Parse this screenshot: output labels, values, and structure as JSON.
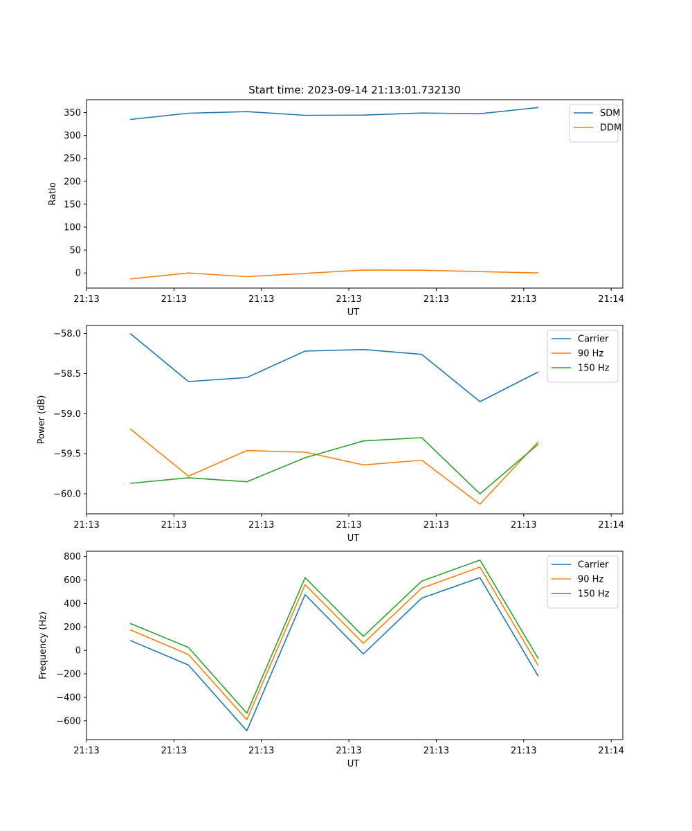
{
  "chart_data": [
    {
      "type": "line",
      "title": "Start time: 2023-09-14 21:13:01.732130",
      "xlabel": "UT",
      "ylabel": "Ratio",
      "ylim": [
        -33,
        378
      ],
      "yticks": [
        0,
        50,
        100,
        150,
        200,
        250,
        300,
        350
      ],
      "xlim": [
        -0.5,
        8.7
      ],
      "xticks": [
        -0.5,
        1.0,
        2.5,
        4.0,
        5.5,
        7.0,
        8.5
      ],
      "xticklabels": [
        "21:13",
        "21:13",
        "21:13",
        "21:13",
        "21:13",
        "21:13",
        "21:14"
      ],
      "x": [
        0.25,
        1.25,
        2.25,
        3.25,
        4.25,
        5.25,
        6.25,
        7.25
      ],
      "legend_position": "top-right",
      "series": [
        {
          "name": "SDM",
          "color": "#1f77b4",
          "values": [
            335,
            348.5,
            352,
            344,
            344.5,
            349,
            347.5,
            361
          ]
        },
        {
          "name": "DDM",
          "color": "#ff7f0e",
          "values": [
            -13,
            0,
            -8,
            -1,
            6.5,
            6,
            3,
            0
          ]
        }
      ]
    },
    {
      "type": "line",
      "title": "",
      "xlabel": "UT",
      "ylabel": "Power (dB)",
      "ylim": [
        -60.25,
        -57.9
      ],
      "yticks": [
        -60.0,
        -59.5,
        -59.0,
        -58.5,
        -58.0
      ],
      "yticklabels": [
        "−60.0",
        "−59.5",
        "−59.0",
        "−58.5",
        "−58.0"
      ],
      "xlim": [
        -0.5,
        8.7
      ],
      "xticks": [
        -0.5,
        1.0,
        2.5,
        4.0,
        5.5,
        7.0,
        8.5
      ],
      "xticklabels": [
        "21:13",
        "21:13",
        "21:13",
        "21:13",
        "21:13",
        "21:13",
        "21:14"
      ],
      "x": [
        0.25,
        1.25,
        2.25,
        3.25,
        4.25,
        5.25,
        6.25,
        7.25
      ],
      "legend_position": "top-right",
      "series": [
        {
          "name": "Carrier",
          "color": "#1f77b4",
          "values": [
            -58.0,
            -58.6,
            -58.55,
            -58.22,
            -58.2,
            -58.26,
            -58.85,
            -58.48
          ]
        },
        {
          "name": "90 Hz",
          "color": "#ff7f0e",
          "values": [
            -59.19,
            -59.78,
            -59.46,
            -59.48,
            -59.64,
            -59.58,
            -60.13,
            -59.35
          ]
        },
        {
          "name": "150 Hz",
          "color": "#2ca02c",
          "values": [
            -59.87,
            -59.8,
            -59.85,
            -59.55,
            -59.34,
            -59.3,
            -60.0,
            -59.38
          ]
        }
      ]
    },
    {
      "type": "line",
      "title": "",
      "xlabel": "UT",
      "ylabel": "Frequency (Hz)",
      "ylim": [
        -760,
        845
      ],
      "yticks": [
        -600,
        -400,
        -200,
        0,
        200,
        400,
        600,
        800
      ],
      "yticklabels": [
        "−600",
        "−400",
        "−200",
        "0",
        "200",
        "400",
        "600",
        "800"
      ],
      "xlim": [
        -0.5,
        8.7
      ],
      "xticks": [
        -0.5,
        1.0,
        2.5,
        4.0,
        5.5,
        7.0,
        8.5
      ],
      "xticklabels": [
        "21:13",
        "21:13",
        "21:13",
        "21:13",
        "21:13",
        "21:13",
        "21:14"
      ],
      "x": [
        0.25,
        1.25,
        2.25,
        3.25,
        4.25,
        5.25,
        6.25,
        7.25
      ],
      "legend_position": "top-right",
      "series": [
        {
          "name": "Carrier",
          "color": "#1f77b4",
          "values": [
            85,
            -125,
            -685,
            475,
            -30,
            445,
            620,
            -220
          ]
        },
        {
          "name": "90 Hz",
          "color": "#ff7f0e",
          "values": [
            175,
            -35,
            -590,
            560,
            60,
            530,
            710,
            -130
          ]
        },
        {
          "name": "150 Hz",
          "color": "#2ca02c",
          "values": [
            230,
            25,
            -535,
            620,
            120,
            590,
            770,
            -70
          ]
        }
      ]
    }
  ]
}
